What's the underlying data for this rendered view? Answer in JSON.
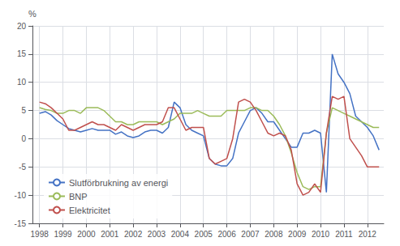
{
  "chart_data": {
    "type": "line",
    "ylabel": "%",
    "x": [
      1998.0,
      1998.25,
      1998.5,
      1998.75,
      1999.0,
      1999.25,
      1999.5,
      1999.75,
      2000.0,
      2000.25,
      2000.5,
      2000.75,
      2001.0,
      2001.25,
      2001.5,
      2001.75,
      2002.0,
      2002.25,
      2002.5,
      2002.75,
      2003.0,
      2003.25,
      2003.5,
      2003.75,
      2004.0,
      2004.25,
      2004.5,
      2004.75,
      2005.0,
      2005.25,
      2005.5,
      2005.75,
      2006.0,
      2006.25,
      2006.5,
      2006.75,
      2007.0,
      2007.25,
      2007.5,
      2007.75,
      2008.0,
      2008.25,
      2008.5,
      2008.75,
      2009.0,
      2009.25,
      2009.5,
      2009.75,
      2010.0,
      2010.25,
      2010.5,
      2010.75,
      2011.0,
      2011.25,
      2011.5,
      2011.75,
      2012.0,
      2012.25,
      2012.5
    ],
    "series": [
      {
        "name": "Slutförbrukning av energi",
        "color": "#4472c4",
        "values": [
          4.5,
          4.8,
          4.2,
          3.2,
          2.5,
          1.8,
          1.5,
          1.2,
          1.5,
          1.8,
          1.5,
          1.5,
          1.5,
          0.8,
          1.2,
          0.5,
          0.2,
          0.5,
          1.2,
          1.5,
          1.5,
          1.0,
          2.0,
          6.5,
          5.5,
          2.5,
          1.5,
          1.0,
          0.5,
          -3.5,
          -4.5,
          -4.8,
          -4.8,
          -3.5,
          1.0,
          3.0,
          5.0,
          5.5,
          4.5,
          3.0,
          3.0,
          1.5,
          0.0,
          -1.5,
          -1.5,
          1.0,
          1.0,
          1.5,
          1.0,
          -9.5,
          15.0,
          11.5,
          10.0,
          8.0,
          4.0,
          3.0,
          2.0,
          0.5,
          -2.0
        ]
      },
      {
        "name": "BNP",
        "color": "#9bbb59",
        "values": [
          5.5,
          5.2,
          5.0,
          4.5,
          4.5,
          5.0,
          5.0,
          4.5,
          5.5,
          5.5,
          5.5,
          5.0,
          4.0,
          3.0,
          3.0,
          2.5,
          2.5,
          3.0,
          3.0,
          3.0,
          3.0,
          2.5,
          3.0,
          3.5,
          4.5,
          4.5,
          4.5,
          5.0,
          4.5,
          4.0,
          4.0,
          4.0,
          5.0,
          5.0,
          5.0,
          5.0,
          5.5,
          5.5,
          5.0,
          5.0,
          4.0,
          2.5,
          0.5,
          -2.5,
          -6.0,
          -8.5,
          -9.0,
          -8.5,
          -8.5,
          1.0,
          5.5,
          5.0,
          4.5,
          4.0,
          3.5,
          3.0,
          2.5,
          2.0,
          2.0
        ]
      },
      {
        "name": "Elektricitet",
        "color": "#c0504d",
        "values": [
          6.5,
          6.2,
          5.5,
          4.5,
          3.5,
          1.5,
          1.5,
          2.0,
          2.5,
          3.0,
          2.5,
          2.5,
          2.0,
          1.5,
          2.5,
          2.0,
          1.5,
          2.0,
          2.5,
          2.5,
          2.5,
          3.0,
          5.5,
          5.5,
          3.5,
          1.5,
          2.0,
          2.0,
          2.0,
          -3.5,
          -4.5,
          -4.0,
          -3.5,
          0.0,
          6.5,
          7.0,
          6.5,
          5.0,
          3.0,
          1.0,
          0.5,
          1.0,
          0.5,
          -2.0,
          -8.0,
          -10.0,
          -9.5,
          -8.0,
          -9.5,
          1.0,
          7.5,
          7.0,
          7.5,
          0.0,
          -1.5,
          -3.0,
          -5.0,
          -5.0,
          -5.0
        ]
      }
    ],
    "xlim": [
      1997.7,
      2012.7
    ],
    "ylim": [
      -15,
      20
    ],
    "xticks": [
      1998,
      1999,
      2000,
      2001,
      2002,
      2003,
      2004,
      2005,
      2006,
      2007,
      2008,
      2009,
      2010,
      2011,
      2012
    ],
    "yticks": [
      -15,
      -10,
      -5,
      0,
      5,
      10,
      15,
      20
    ],
    "grid": true,
    "legend": "lower left"
  }
}
